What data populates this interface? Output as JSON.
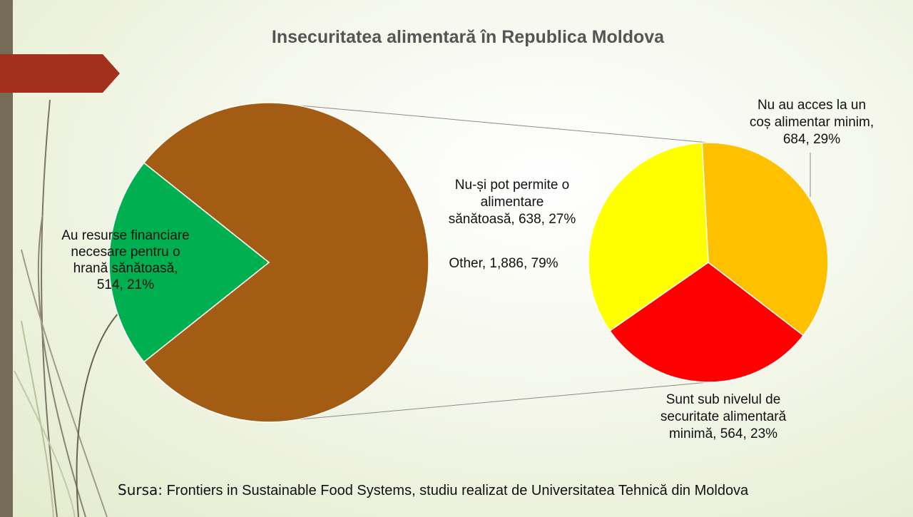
{
  "title": "Insecuritatea alimentară în Republica Moldova",
  "source": {
    "prefix": "Sursa:",
    "text": "Frontiers in Sustainable Food Systems, studiu realizat de Universitatea Tehnică din Moldova"
  },
  "colors": {
    "other": "#a35c14",
    "resurse": "#00b050",
    "nu_au_acces": "#ffc000",
    "sub_nivel": "#ff0000",
    "nu_pot_permite": "#ffff00",
    "accent_arrow": "#a1301c"
  },
  "chart_data": {
    "type": "pie",
    "subtype": "pie-of-pie",
    "title": "Insecuritatea alimentară în Republica Moldova",
    "main_pie": [
      {
        "label": "Au resurse financiare necesare pentru o hrană sănătoasă",
        "value": 514,
        "percent": 21
      },
      {
        "label": "Other",
        "value": 1886,
        "percent": 79
      }
    ],
    "secondary_pie": [
      {
        "label": "Nu au acces la un coș alimentar minim",
        "value": 684,
        "percent": 29
      },
      {
        "label": "Sunt sub nivelul de securitate alimentară minimă",
        "value": 564,
        "percent": 23
      },
      {
        "label": "Nu-și pot permite o alimentare sănătoasă",
        "value": 638,
        "percent": 27
      }
    ],
    "labels": {
      "resurse": [
        "Au resurse financiare",
        "necesare pentru o",
        "hrană sănătoasă,",
        "514, 21%"
      ],
      "other": [
        "Other, 1,886, 79%"
      ],
      "nu_pot_permite": [
        "Nu-și pot permite o",
        "alimentare",
        "sănătoasă, 638, 27%"
      ],
      "nu_au_acces": [
        "Nu au acces la un",
        "coș alimentar minim,",
        "684, 29%"
      ],
      "sub_nivel": [
        "Sunt sub nivelul de",
        "securitate alimentară",
        "minimă, 564, 23%"
      ]
    }
  }
}
